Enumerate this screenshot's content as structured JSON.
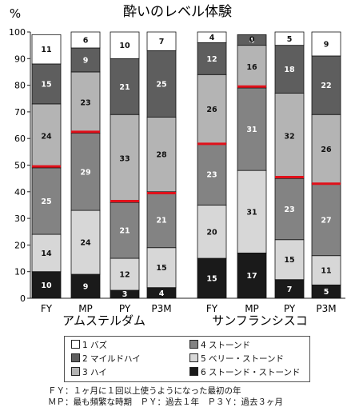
{
  "chart_data": {
    "type": "bar",
    "stacked": true,
    "title": "酔いのレベル体験",
    "ylabel": "%",
    "ylim": [
      0,
      100
    ],
    "yticks": [
      0,
      10,
      20,
      30,
      40,
      50,
      60,
      70,
      80,
      90,
      100
    ],
    "groups": [
      {
        "name": "アムステルダム",
        "categories": [
          "FY",
          "MP",
          "PY",
          "P3M"
        ],
        "median_marks": [
          49.5,
          62.5,
          36.5,
          39.5
        ],
        "series": [
          {
            "name": "6 ストーンド・ストーンド",
            "values": [
              10,
              9,
              3,
              4
            ]
          },
          {
            "name": "5 ベリー・ストーンド",
            "values": [
              14,
              24,
              12,
              15
            ]
          },
          {
            "name": "4 ストーンド",
            "values": [
              25,
              29,
              21,
              21
            ]
          },
          {
            "name": "3 ハイ",
            "values": [
              24,
              23,
              33,
              28
            ]
          },
          {
            "name": "2 マイルドハイ",
            "values": [
              15,
              9,
              21,
              25
            ]
          },
          {
            "name": "1 バズ",
            "values": [
              11,
              6,
              10,
              7
            ]
          }
        ]
      },
      {
        "name": "サンフランシスコ",
        "categories": [
          "FY",
          "MP",
          "PY",
          "P3M"
        ],
        "median_marks": [
          58,
          79.5,
          45.5,
          43
        ],
        "series": [
          {
            "name": "6 ストーンド・ストーンド",
            "values": [
              15,
              17,
              7,
              5
            ]
          },
          {
            "name": "5 ベリー・ストーンド",
            "values": [
              20,
              31,
              15,
              11
            ]
          },
          {
            "name": "4 ストーンド",
            "values": [
              23,
              31,
              23,
              27
            ]
          },
          {
            "name": "3 ハイ",
            "values": [
              26,
              16,
              32,
              26
            ]
          },
          {
            "name": "2 マイルドハイ",
            "values": [
              12,
              4,
              18,
              22
            ]
          },
          {
            "name": "1 バズ",
            "values": [
              4,
              0,
              5,
              9
            ]
          }
        ]
      }
    ]
  },
  "legend": {
    "items": [
      {
        "label": "1 バズ",
        "color": "#ffffff"
      },
      {
        "label": "2 マイルドハイ",
        "color": "#5e5e5e"
      },
      {
        "label": "3 ハイ",
        "color": "#b4b4b4"
      },
      {
        "label": "4 ストーンド",
        "color": "#838383"
      },
      {
        "label": "5 ベリー・ストーンド",
        "color": "#d7d7d7"
      },
      {
        "label": "6 ストーンド・ストーンド",
        "color": "#1a1a1a"
      }
    ]
  },
  "segment_colors": [
    "#1a1a1a",
    "#d7d7d7",
    "#838383",
    "#b4b4b4",
    "#5e5e5e",
    "#ffffff"
  ],
  "median_color": "#e0101a",
  "notes": {
    "line1": "ＦＹ：１ヶ月に１回以上使うようになった最初の年",
    "line2": "ＭＰ：最も頻繁な時期　ＰＹ：過去１年　Ｐ３Ｙ：過去３ヶ月"
  }
}
